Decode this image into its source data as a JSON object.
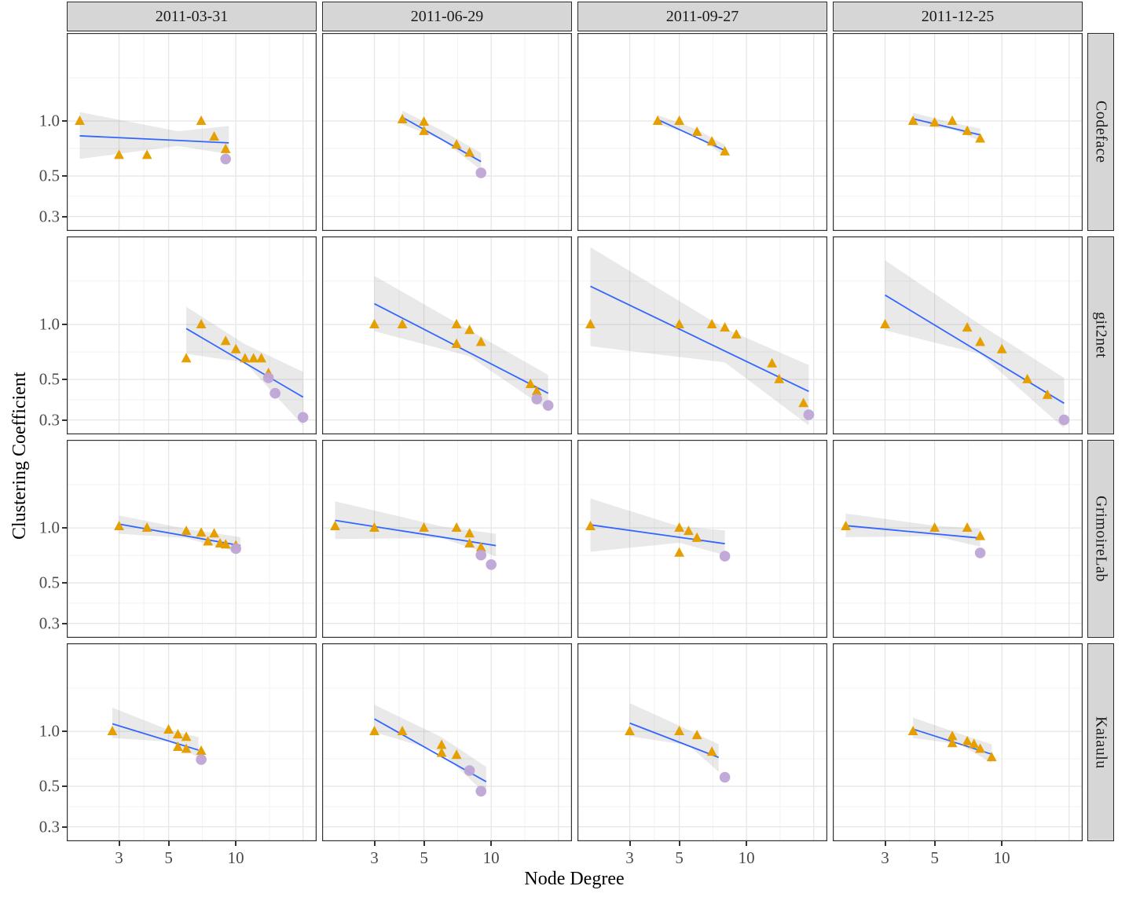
{
  "chart_data": {
    "type": "scatter",
    "xlabel": "Node Degree",
    "ylabel": "Clustering Coefficient",
    "x_scale": "log10",
    "y_scale": "log10",
    "x_range": [
      1.75,
      23
    ],
    "y_range": [
      0.25,
      3.04
    ],
    "x_ticks": [
      "3",
      "5",
      "10"
    ],
    "x_tick_values": [
      3,
      5,
      10
    ],
    "y_ticks": [
      "1.0",
      "0.5",
      "0.3"
    ],
    "y_tick_values": [
      1.0,
      0.5,
      0.3
    ],
    "grid": {
      "x_major": [
        3,
        5,
        10,
        20
      ],
      "x_minor": [
        3.87,
        7.07,
        14.14
      ],
      "y_major": [
        1.0,
        0.5,
        0.3
      ],
      "y_minor": [
        1.73,
        0.707,
        0.387
      ]
    },
    "legend_position": "none",
    "facet_columns": [
      "2011-03-31",
      "2011-06-29",
      "2011-09-27",
      "2011-12-25"
    ],
    "facet_rows": [
      "Codeface",
      "git2net",
      "GrimoireLab",
      "Kaiaulu"
    ],
    "style": {
      "triangle_color": "#E69F00",
      "circle_color": "#BFA5D6",
      "smooth_line_color": "#3366FF",
      "band_color": "rgba(120,120,120,0.16)",
      "strip_bg": "#d6d6d6",
      "panel_border": "#333333",
      "grid_major": "#e6e6e6",
      "grid_minor": "#f2f2f2",
      "tick_text": "#4a4a4a"
    },
    "panels": [
      {
        "row": "Codeface",
        "col": "2011-03-31",
        "triangles": [
          [
            2,
            1.0
          ],
          [
            3,
            0.65
          ],
          [
            4,
            0.65
          ],
          [
            7,
            1.0
          ],
          [
            8,
            0.82
          ],
          [
            9,
            0.7
          ]
        ],
        "circles": [
          [
            9,
            0.62
          ]
        ],
        "smooth": {
          "x1": 2,
          "y1": 0.83,
          "x2": 9.3,
          "y2": 0.76
        },
        "band": [
          [
            2,
            0.62,
            1.12
          ],
          [
            5.5,
            0.73,
            0.88
          ],
          [
            9.3,
            0.66,
            0.94
          ]
        ]
      },
      {
        "row": "Codeface",
        "col": "2011-06-29",
        "triangles": [
          [
            4,
            1.02
          ],
          [
            5,
            0.99
          ],
          [
            5,
            0.88
          ],
          [
            7,
            0.74
          ],
          [
            8,
            0.67
          ]
        ],
        "circles": [
          [
            9,
            0.52
          ]
        ],
        "smooth": {
          "x1": 4,
          "y1": 1.05,
          "x2": 9,
          "y2": 0.6
        },
        "band": [
          [
            4,
            0.96,
            1.14
          ],
          [
            6,
            0.79,
            0.89
          ],
          [
            9,
            0.54,
            0.67
          ]
        ]
      },
      {
        "row": "Codeface",
        "col": "2011-09-27",
        "triangles": [
          [
            4,
            1.0
          ],
          [
            5,
            1.0
          ],
          [
            6,
            0.87
          ],
          [
            7,
            0.77
          ],
          [
            8,
            0.68
          ]
        ],
        "circles": [],
        "smooth": {
          "x1": 4,
          "y1": 1.02,
          "x2": 8,
          "y2": 0.69
        },
        "band": [
          [
            4,
            0.96,
            1.08
          ],
          [
            6,
            0.83,
            0.9
          ],
          [
            8,
            0.64,
            0.74
          ]
        ]
      },
      {
        "row": "Codeface",
        "col": "2011-12-25",
        "triangles": [
          [
            4,
            1.0
          ],
          [
            5,
            0.98
          ],
          [
            6,
            1.0
          ],
          [
            7,
            0.88
          ],
          [
            8,
            0.8
          ]
        ],
        "circles": [],
        "smooth": {
          "x1": 4,
          "y1": 1.03,
          "x2": 8,
          "y2": 0.84
        },
        "band": [
          [
            4,
            0.95,
            1.11
          ],
          [
            6,
            0.9,
            0.98
          ],
          [
            8,
            0.78,
            0.91
          ]
        ]
      },
      {
        "row": "git2net",
        "col": "2011-03-31",
        "triangles": [
          [
            6,
            0.65
          ],
          [
            7,
            1.0
          ],
          [
            9,
            0.81
          ],
          [
            10,
            0.73
          ],
          [
            11,
            0.65
          ],
          [
            12,
            0.65
          ],
          [
            13,
            0.65
          ],
          [
            14,
            0.54
          ]
        ],
        "circles": [
          [
            14,
            0.51
          ],
          [
            15,
            0.42
          ],
          [
            20,
            0.31
          ]
        ],
        "smooth": {
          "x1": 6,
          "y1": 0.95,
          "x2": 20,
          "y2": 0.4
        },
        "band": [
          [
            6,
            0.69,
            1.25
          ],
          [
            11,
            0.62,
            0.78
          ],
          [
            20,
            0.28,
            0.55
          ]
        ]
      },
      {
        "row": "git2net",
        "col": "2011-06-29",
        "triangles": [
          [
            3,
            1.0
          ],
          [
            4,
            1.0
          ],
          [
            7,
            1.0
          ],
          [
            8,
            0.93
          ],
          [
            7,
            0.78
          ],
          [
            9,
            0.8
          ],
          [
            15,
            0.47
          ],
          [
            16,
            0.43
          ]
        ],
        "circles": [
          [
            16,
            0.39
          ],
          [
            18,
            0.36
          ]
        ],
        "smooth": {
          "x1": 3,
          "y1": 1.3,
          "x2": 18,
          "y2": 0.42
        },
        "band": [
          [
            3,
            0.92,
            1.85
          ],
          [
            8,
            0.67,
            0.93
          ],
          [
            18,
            0.34,
            0.53
          ]
        ]
      },
      {
        "row": "git2net",
        "col": "2011-09-27",
        "triangles": [
          [
            2,
            1.0
          ],
          [
            5,
            1.0
          ],
          [
            7,
            1.0
          ],
          [
            8,
            0.96
          ],
          [
            9,
            0.88
          ],
          [
            13,
            0.61
          ],
          [
            14,
            0.5
          ],
          [
            18,
            0.37
          ]
        ],
        "circles": [
          [
            19,
            0.32
          ]
        ],
        "smooth": {
          "x1": 2,
          "y1": 1.62,
          "x2": 19,
          "y2": 0.43
        },
        "band": [
          [
            2,
            0.76,
            2.65
          ],
          [
            8,
            0.62,
            0.95
          ],
          [
            19,
            0.28,
            0.6
          ]
        ]
      },
      {
        "row": "git2net",
        "col": "2011-12-25",
        "triangles": [
          [
            3,
            1.0
          ],
          [
            7,
            0.96
          ],
          [
            8,
            0.8
          ],
          [
            10,
            0.73
          ],
          [
            13,
            0.5
          ],
          [
            16,
            0.41
          ]
        ],
        "circles": [
          [
            19,
            0.3
          ]
        ],
        "smooth": {
          "x1": 3,
          "y1": 1.45,
          "x2": 19,
          "y2": 0.37
        },
        "band": [
          [
            3,
            0.93,
            2.25
          ],
          [
            8,
            0.69,
            1.0
          ],
          [
            19,
            0.27,
            0.51
          ]
        ]
      },
      {
        "row": "GrimoireLab",
        "col": "2011-03-31",
        "triangles": [
          [
            3,
            1.02
          ],
          [
            4,
            1.0
          ],
          [
            6,
            0.96
          ],
          [
            7,
            0.94
          ],
          [
            8,
            0.93
          ],
          [
            7.5,
            0.84
          ],
          [
            8.5,
            0.82
          ],
          [
            9,
            0.81
          ],
          [
            10,
            0.8
          ]
        ],
        "circles": [
          [
            10,
            0.77
          ]
        ],
        "smooth": {
          "x1": 3,
          "y1": 1.05,
          "x2": 10.5,
          "y2": 0.8
        },
        "band": [
          [
            3,
            0.93,
            1.17
          ],
          [
            6,
            0.88,
            0.99
          ],
          [
            10.5,
            0.73,
            0.89
          ]
        ]
      },
      {
        "row": "GrimoireLab",
        "col": "2011-06-29",
        "triangles": [
          [
            2,
            1.02
          ],
          [
            3,
            1.0
          ],
          [
            5,
            1.0
          ],
          [
            7,
            1.0
          ],
          [
            8,
            0.93
          ],
          [
            8,
            0.82
          ],
          [
            9,
            0.78
          ]
        ],
        "circles": [
          [
            9,
            0.71
          ],
          [
            10,
            0.63
          ]
        ],
        "smooth": {
          "x1": 2,
          "y1": 1.1,
          "x2": 10.5,
          "y2": 0.8
        },
        "band": [
          [
            2,
            0.87,
            1.4
          ],
          [
            6,
            0.88,
            1.02
          ],
          [
            10.5,
            0.7,
            0.93
          ]
        ]
      },
      {
        "row": "GrimoireLab",
        "col": "2011-09-27",
        "triangles": [
          [
            2,
            1.02
          ],
          [
            5,
            1.0
          ],
          [
            5.5,
            0.96
          ],
          [
            6,
            0.88
          ],
          [
            5,
            0.73
          ]
        ],
        "circles": [
          [
            8,
            0.7
          ]
        ],
        "smooth": {
          "x1": 2,
          "y1": 1.04,
          "x2": 8,
          "y2": 0.82
        },
        "band": [
          [
            2,
            0.74,
            1.45
          ],
          [
            5,
            0.83,
            1.02
          ],
          [
            8,
            0.71,
            0.97
          ]
        ]
      },
      {
        "row": "GrimoireLab",
        "col": "2011-12-25",
        "triangles": [
          [
            2,
            1.02
          ],
          [
            5,
            1.0
          ],
          [
            7,
            1.0
          ],
          [
            8,
            0.9
          ]
        ],
        "circles": [
          [
            8,
            0.73
          ]
        ],
        "smooth": {
          "x1": 2,
          "y1": 1.03,
          "x2": 8,
          "y2": 0.88
        },
        "band": [
          [
            2,
            0.89,
            1.2
          ],
          [
            5,
            0.9,
            1.03
          ],
          [
            8,
            0.79,
            0.99
          ]
        ]
      },
      {
        "row": "Kaiaulu",
        "col": "2011-03-31",
        "triangles": [
          [
            2.8,
            1.0
          ],
          [
            5,
            1.02
          ],
          [
            5.5,
            0.96
          ],
          [
            6,
            0.93
          ],
          [
            5.5,
            0.82
          ],
          [
            6,
            0.8
          ],
          [
            7,
            0.78
          ]
        ],
        "circles": [
          [
            7,
            0.7
          ]
        ],
        "smooth": {
          "x1": 2.8,
          "y1": 1.1,
          "x2": 6.8,
          "y2": 0.79
        },
        "band": [
          [
            2.8,
            0.92,
            1.35
          ],
          [
            5,
            0.88,
            1.02
          ],
          [
            6.8,
            0.72,
            0.93
          ]
        ]
      },
      {
        "row": "Kaiaulu",
        "col": "2011-06-29",
        "triangles": [
          [
            3,
            1.0
          ],
          [
            4,
            1.0
          ],
          [
            6,
            0.84
          ],
          [
            6,
            0.76
          ],
          [
            7,
            0.74
          ]
        ],
        "circles": [
          [
            8,
            0.61
          ],
          [
            9,
            0.47
          ]
        ],
        "smooth": {
          "x1": 3,
          "y1": 1.17,
          "x2": 9.5,
          "y2": 0.53
        },
        "band": [
          [
            3,
            0.99,
            1.4
          ],
          [
            6,
            0.77,
            0.93
          ],
          [
            9.5,
            0.45,
            0.64
          ]
        ]
      },
      {
        "row": "Kaiaulu",
        "col": "2011-09-27",
        "triangles": [
          [
            3,
            1.0
          ],
          [
            5,
            1.0
          ],
          [
            6,
            0.95
          ],
          [
            7,
            0.77
          ]
        ],
        "circles": [
          [
            8,
            0.56
          ]
        ],
        "smooth": {
          "x1": 3,
          "y1": 1.11,
          "x2": 7.5,
          "y2": 0.72
        },
        "band": [
          [
            3,
            0.94,
            1.43
          ],
          [
            5.5,
            0.84,
            1.02
          ],
          [
            7.5,
            0.6,
            0.85
          ]
        ]
      },
      {
        "row": "Kaiaulu",
        "col": "2011-12-25",
        "triangles": [
          [
            4,
            1.0
          ],
          [
            6,
            0.94
          ],
          [
            6,
            0.86
          ],
          [
            7,
            0.88
          ],
          [
            7.5,
            0.85
          ],
          [
            8,
            0.8
          ],
          [
            9,
            0.72
          ]
        ],
        "circles": [],
        "smooth": {
          "x1": 4,
          "y1": 1.03,
          "x2": 9,
          "y2": 0.75
        },
        "band": [
          [
            4,
            0.92,
            1.19
          ],
          [
            6.5,
            0.85,
            0.97
          ],
          [
            9,
            0.67,
            0.85
          ]
        ]
      }
    ]
  }
}
